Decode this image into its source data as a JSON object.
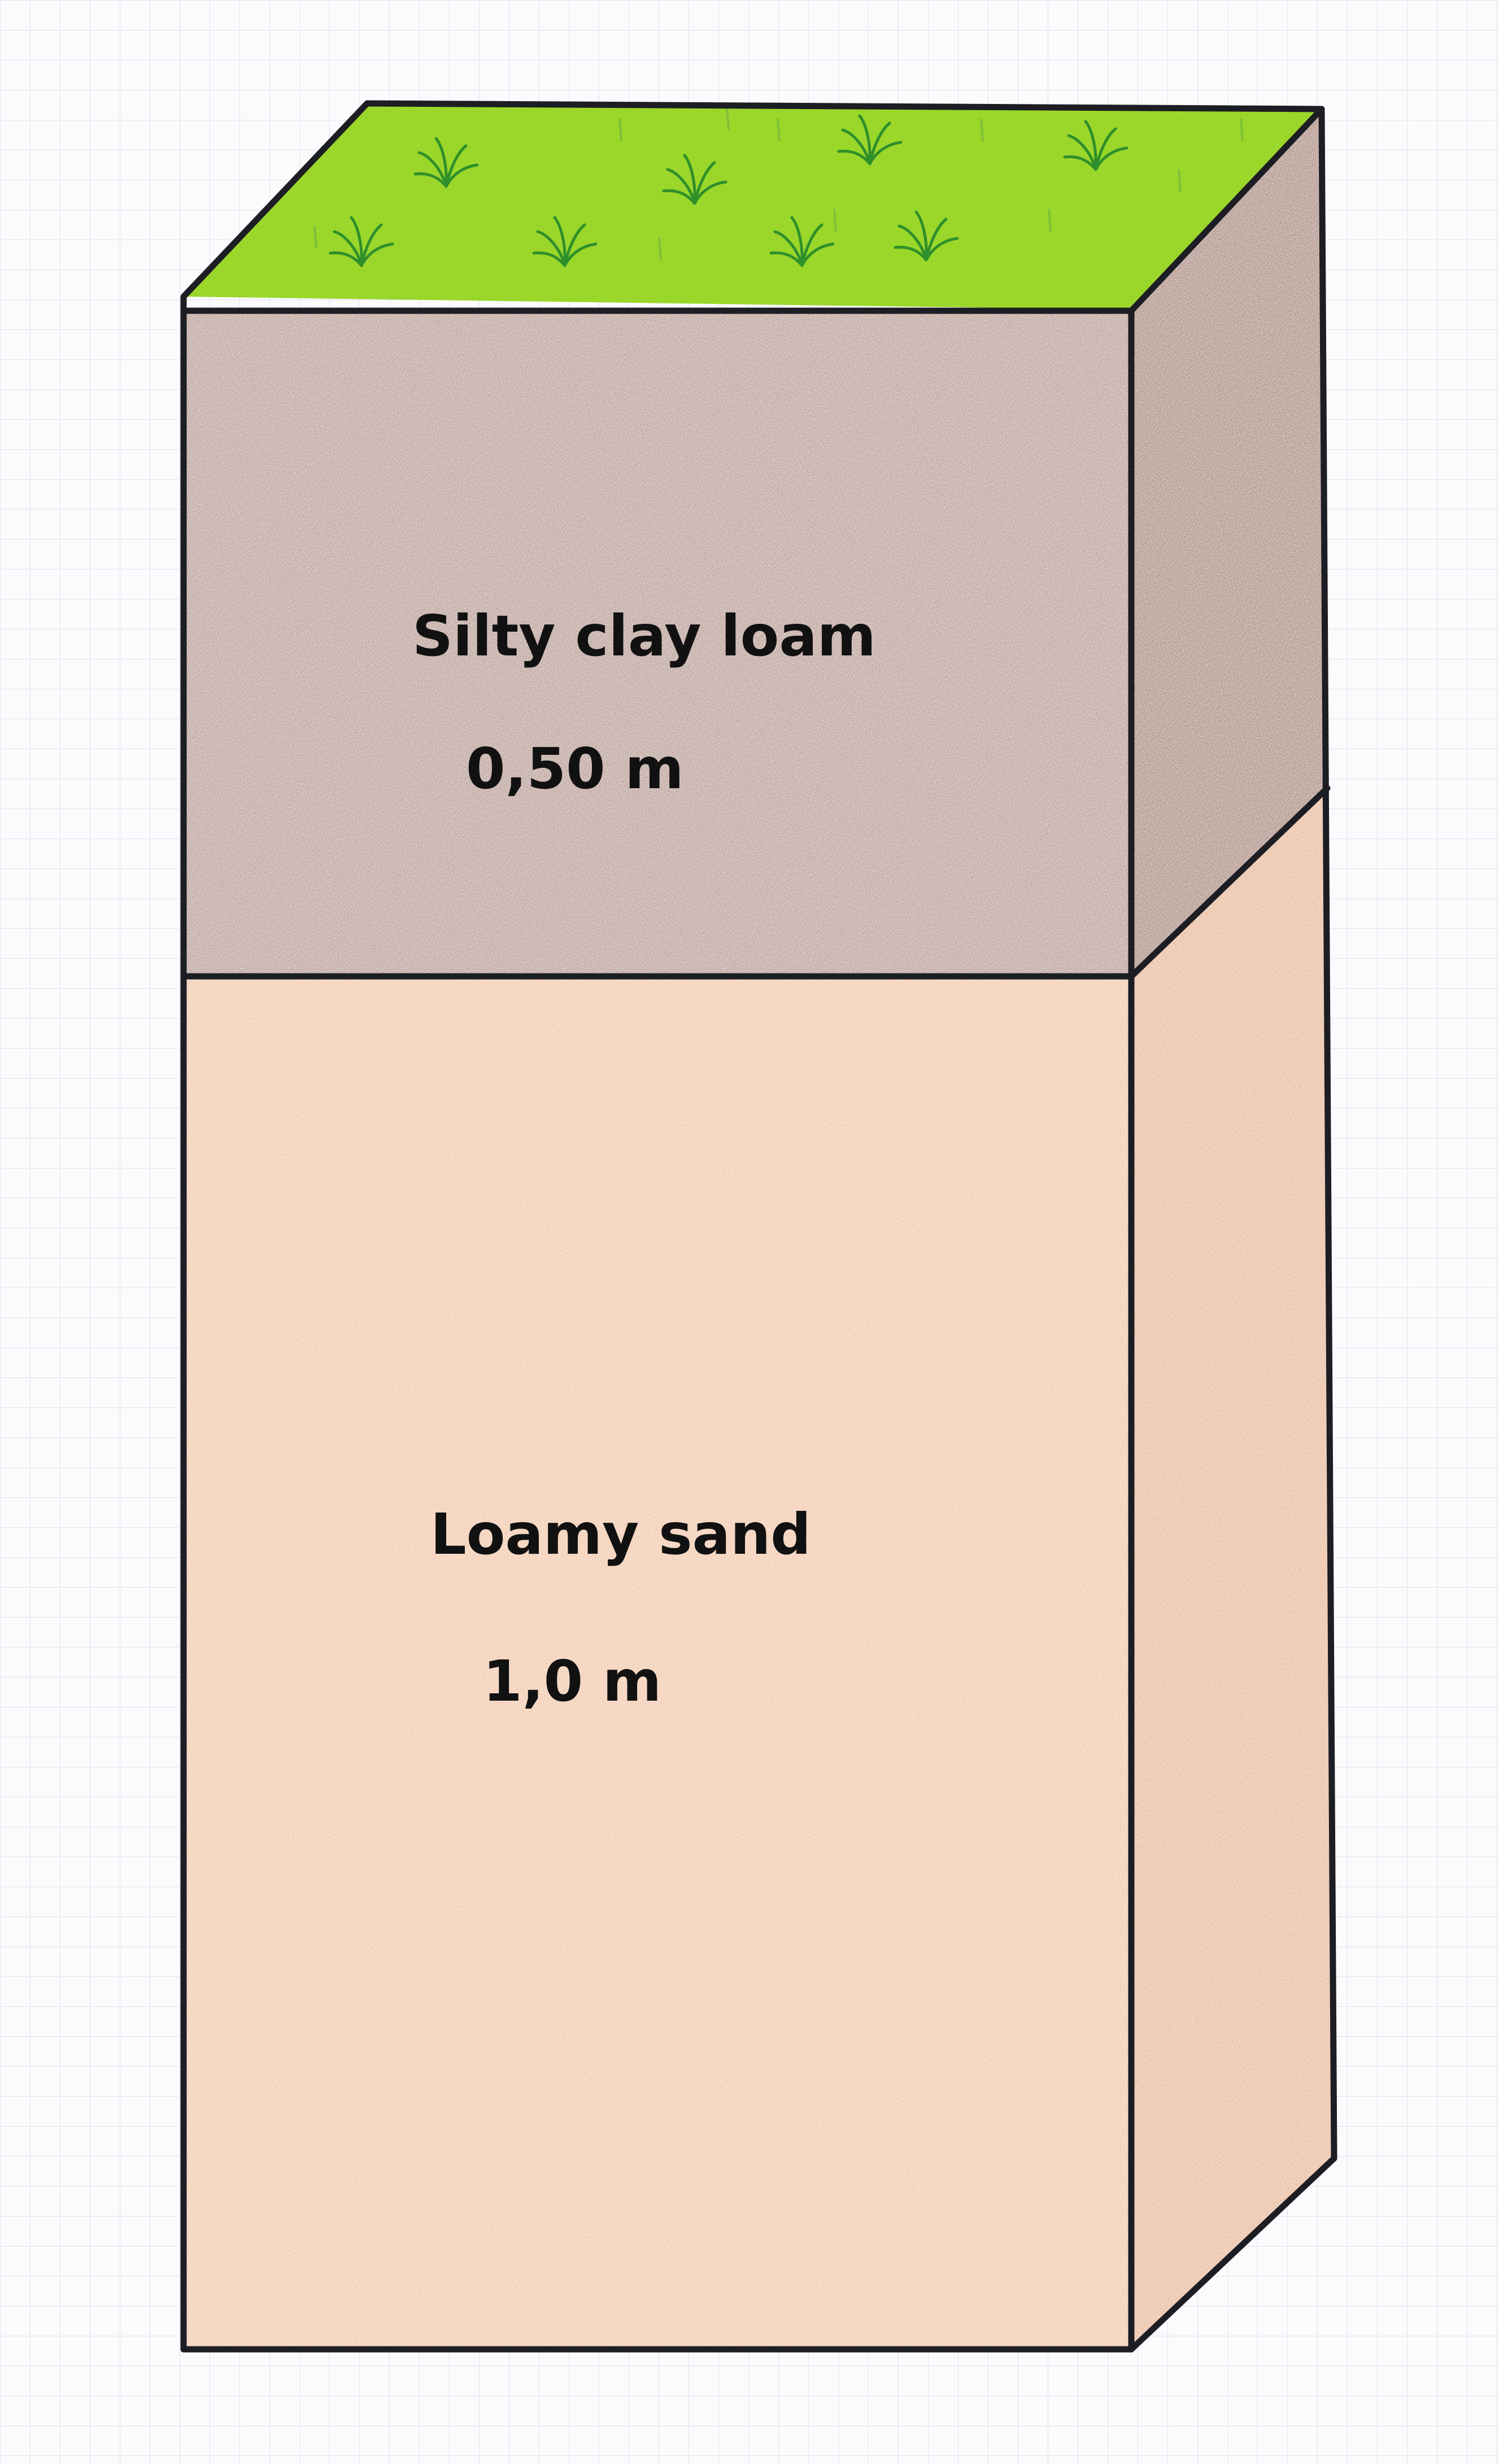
{
  "layers": [
    {
      "name": "Silty clay loam",
      "thickness": "0,50 m",
      "color": "#b89a90"
    },
    {
      "name": "Loamy sand",
      "thickness": "1,0 m",
      "color": "#f2c7a8"
    }
  ],
  "surface": {
    "color": "#9ad72a",
    "tuft_icon": "grass-tuft-icon"
  },
  "paper": {
    "grid_color": "#dfe3ea",
    "background": "#fbfbfd"
  },
  "outline_color": "#1d1d24"
}
